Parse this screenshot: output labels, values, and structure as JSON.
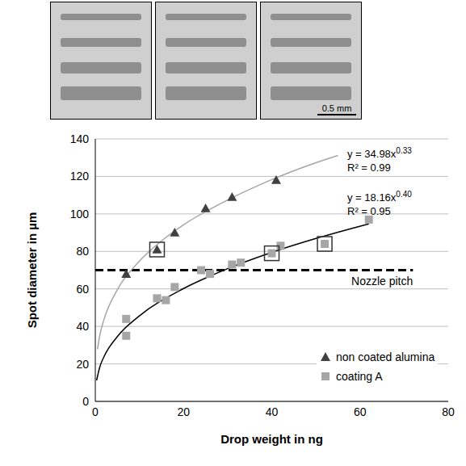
{
  "chart_data": {
    "type": "scatter",
    "x_label": "Drop weight in ng",
    "y_label": "Spot diameter in µm",
    "xlim": [
      0,
      80
    ],
    "ylim": [
      0,
      140
    ],
    "xticks": [
      0,
      20,
      40,
      60,
      80
    ],
    "yticks": [
      0,
      20,
      40,
      60,
      80,
      100,
      120,
      140
    ],
    "grid": true,
    "legend": "bottom right",
    "series": [
      {
        "name": "non coated alumina",
        "color": "#404040",
        "marker": "triangle",
        "x": [
          7,
          14,
          18,
          25,
          31,
          41
        ],
        "values": [
          68,
          81,
          90,
          103,
          109,
          118
        ],
        "fit": {
          "color": "#a6a6a6",
          "line_style": "solid",
          "x": [
            0.5,
            1,
            2,
            5,
            10,
            15,
            20,
            30,
            40,
            50,
            55
          ],
          "values": [
            27.8,
            35,
            43.9,
            59.6,
            74.8,
            85.6,
            94.2,
            107.4,
            118.3,
            127.3,
            131.2
          ],
          "equation": "y = 34.98x",
          "exponent": "0.33",
          "r2": "R² = 0.99"
        }
      },
      {
        "name": "coating A",
        "color": "#a6a6a6",
        "marker": "square",
        "x": [
          7,
          7,
          14,
          16,
          18,
          24,
          26,
          31,
          33,
          40,
          42,
          52,
          62
        ],
        "values": [
          44,
          35,
          55,
          54,
          61,
          70,
          68,
          73,
          74,
          79,
          83,
          84,
          97
        ],
        "fit": {
          "color": "#000000",
          "line_style": "solid",
          "x": [
            0.3,
            1,
            2,
            5,
            10,
            20,
            30,
            40,
            50,
            62
          ],
          "values": [
            11.2,
            18.2,
            24,
            34.6,
            45.6,
            60.2,
            70.8,
            79.5,
            86.9,
            94.7
          ],
          "equation": "y = 18.16x",
          "exponent": "0.40",
          "r2": "R² = 0.95"
        }
      }
    ],
    "reference_lines": [
      {
        "label": "Nozzle pitch",
        "y": 70,
        "x": [
          0,
          72
        ],
        "line_style": "dashed",
        "color": "#000000"
      }
    ],
    "highlighted": {
      "x": [
        14,
        40,
        52
      ],
      "values": [
        81,
        79,
        84
      ],
      "marker": "open_square",
      "color": "#333333"
    },
    "insets": [
      {
        "scale_bar": null
      },
      {
        "scale_bar": null
      },
      {
        "scale_bar": "0.5 mm"
      }
    ]
  }
}
